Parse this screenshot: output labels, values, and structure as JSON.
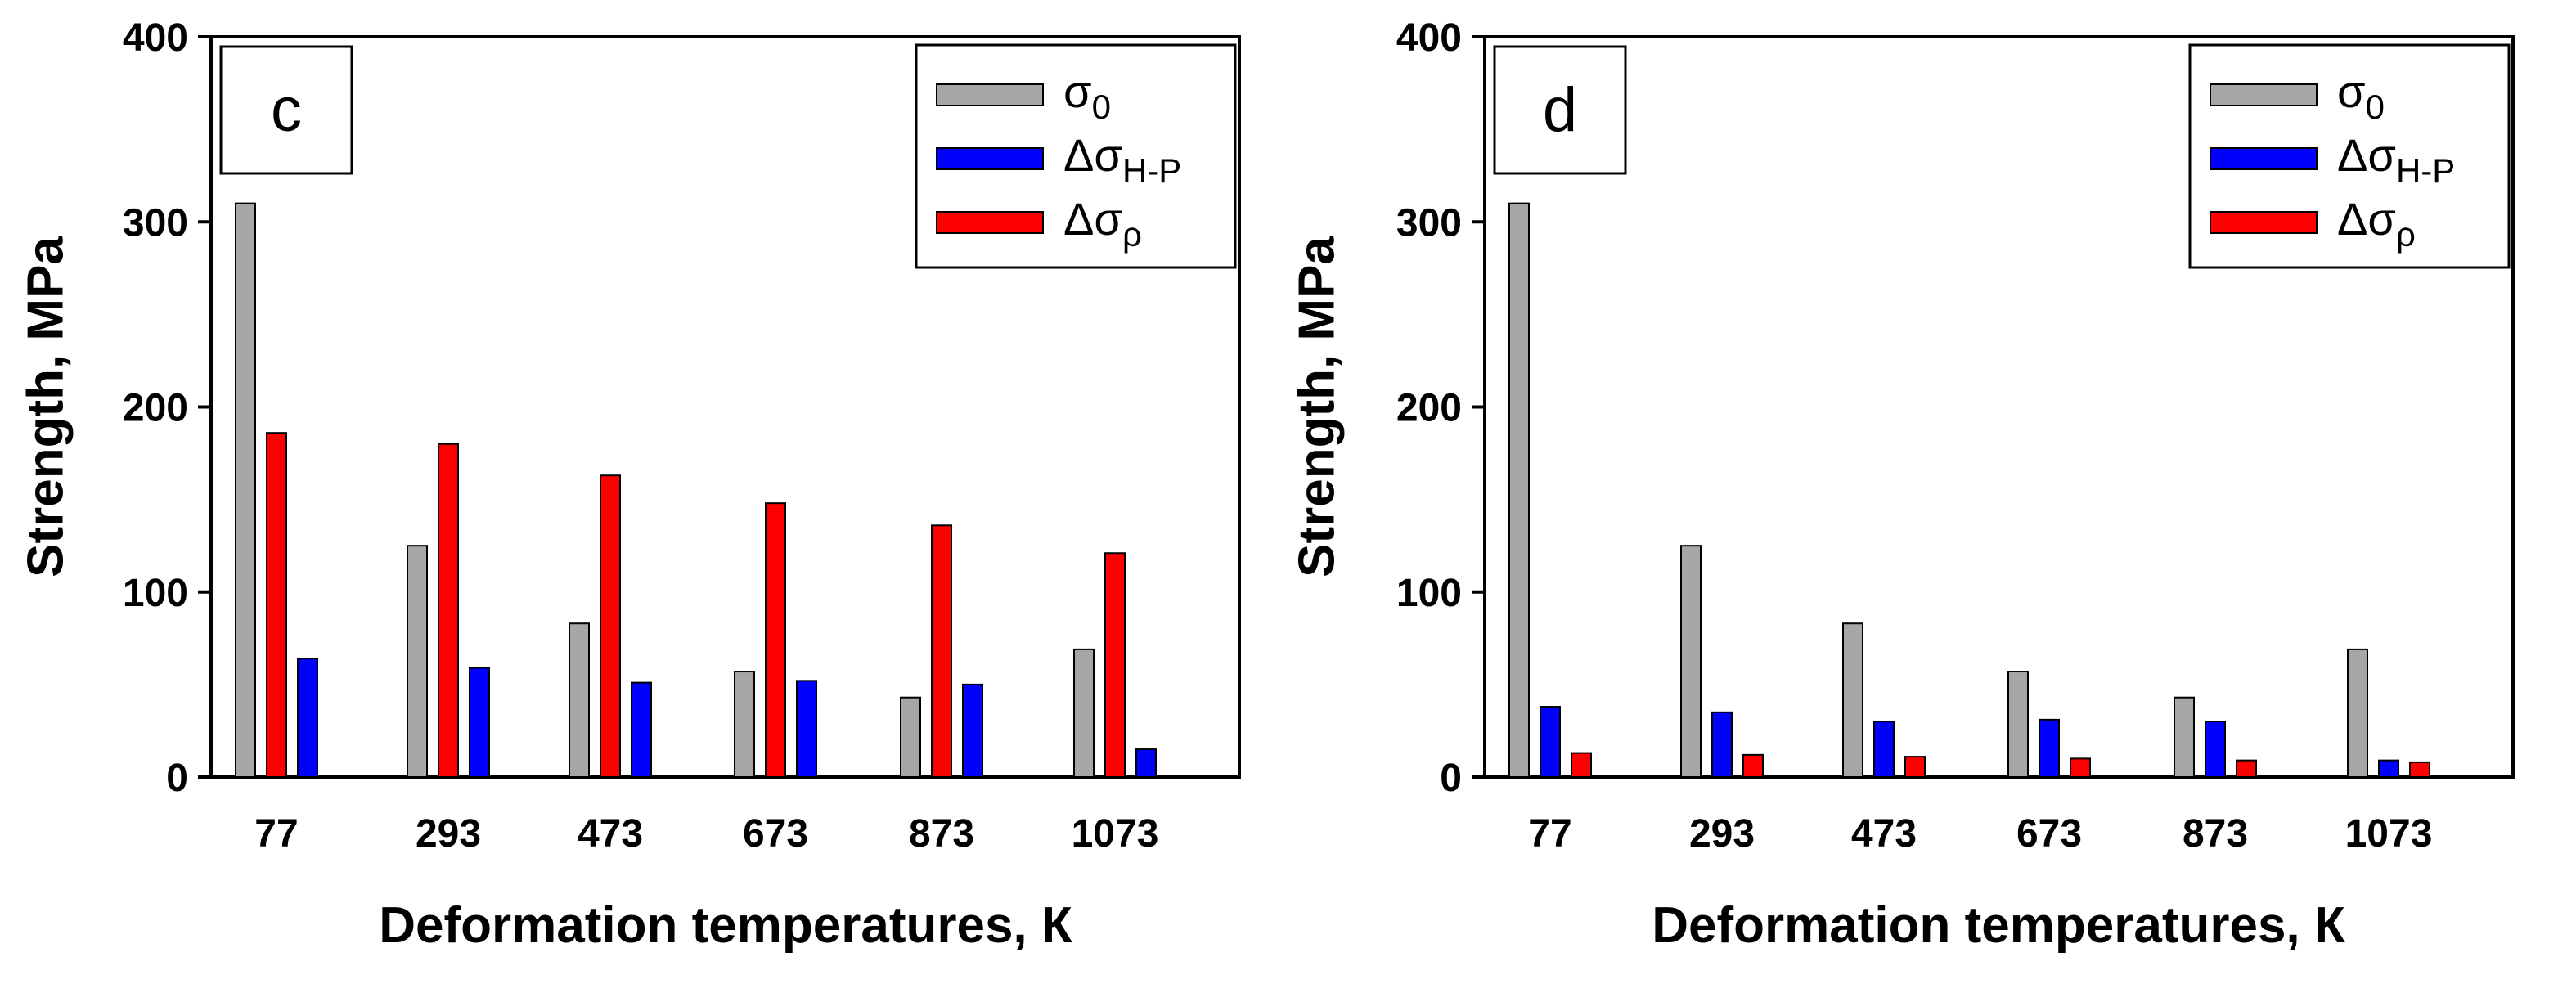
{
  "colors": {
    "sigma0": "#a6a6a6",
    "hp": "#0000ff",
    "rho": "#ff0000",
    "axis": "#000000"
  },
  "chart_data": [
    {
      "type": "bar",
      "panel_label": "c",
      "categories": [
        "77",
        "293",
        "473",
        "673",
        "873",
        "1073"
      ],
      "xlabel": "Deformation temperatures, К",
      "ylabel": "Strength, MPa",
      "ylim": [
        0,
        400
      ],
      "yticks": [
        0,
        100,
        200,
        300,
        400
      ],
      "grid": false,
      "legend_position": "top-right",
      "series": [
        {
          "name": "σ0",
          "symbol": "σ",
          "sub": "0",
          "color_key": "sigma0",
          "values": [
            310,
            125,
            83,
            57,
            43,
            69
          ]
        },
        {
          "name": "Δσρ",
          "symbol": "Δσ",
          "sub": "ρ",
          "color_key": "rho",
          "values": [
            186,
            180,
            163,
            148,
            136,
            121
          ]
        },
        {
          "name": "ΔσH-P",
          "symbol": "Δσ",
          "sub": "H-P",
          "color_key": "hp",
          "values": [
            64,
            59,
            51,
            52,
            50,
            15
          ]
        }
      ],
      "legend_order": [
        0,
        2,
        1
      ]
    },
    {
      "type": "bar",
      "panel_label": "d",
      "categories": [
        "77",
        "293",
        "473",
        "673",
        "873",
        "1073"
      ],
      "xlabel": "Deformation temperatures, К",
      "ylabel": "Strength, MPa",
      "ylim": [
        0,
        400
      ],
      "yticks": [
        0,
        100,
        200,
        300,
        400
      ],
      "grid": false,
      "legend_position": "top-right",
      "series": [
        {
          "name": "σ0",
          "symbol": "σ",
          "sub": "0",
          "color_key": "sigma0",
          "values": [
            310,
            125,
            83,
            57,
            43,
            69
          ]
        },
        {
          "name": "ΔσH-P",
          "symbol": "Δσ",
          "sub": "H-P",
          "color_key": "hp",
          "values": [
            38,
            35,
            30,
            31,
            30,
            9
          ]
        },
        {
          "name": "Δσρ",
          "symbol": "Δσ",
          "sub": "ρ",
          "color_key": "rho",
          "values": [
            13,
            12,
            11,
            10,
            9,
            8
          ]
        }
      ],
      "legend_order": [
        0,
        1,
        2
      ]
    }
  ]
}
